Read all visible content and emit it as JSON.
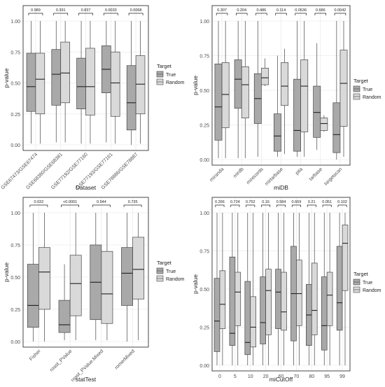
{
  "chart_data": [
    {
      "type": "boxplot",
      "xlabel": "Dataset",
      "ylabel": "p-value",
      "categories": [
        "GSE67473/GSE67474",
        "GSE68380/GSE68381",
        "GSE77192/GSE77160",
        "GSE77193/GSE77161",
        "GSE78886/GSE78887"
      ],
      "pvalues": [
        "0.989",
        "0.391",
        "0.837",
        "0.0033",
        "0.0068"
      ],
      "ylim": [
        0,
        1
      ],
      "yticks": [
        "0.00",
        "0.25",
        "0.50",
        "0.75",
        "1.00"
      ],
      "legend_title": "Target",
      "legend_labels": [
        "True",
        "Random"
      ],
      "legend_position": "right",
      "grid": true,
      "series": [
        {
          "name": "True",
          "boxes": [
            [
              0.01,
              0.27,
              0.47,
              0.74,
              1.0
            ],
            [
              0.02,
              0.32,
              0.57,
              0.77,
              1.0
            ],
            [
              0.01,
              0.29,
              0.47,
              0.7,
              1.0
            ],
            [
              0.02,
              0.42,
              0.61,
              0.8,
              1.0
            ],
            [
              0.0,
              0.12,
              0.34,
              0.64,
              1.0
            ]
          ]
        },
        {
          "name": "Random",
          "boxes": [
            [
              0.01,
              0.25,
              0.53,
              0.74,
              1.0
            ],
            [
              0.02,
              0.34,
              0.58,
              0.83,
              1.0
            ],
            [
              0.01,
              0.24,
              0.47,
              0.78,
              1.0
            ],
            [
              0.01,
              0.23,
              0.5,
              0.75,
              1.0
            ],
            [
              0.01,
              0.25,
              0.49,
              0.72,
              1.0
            ]
          ]
        }
      ]
    },
    {
      "type": "boxplot",
      "xlabel": "miDB",
      "ylabel": "p-value",
      "categories": [
        "miranda",
        "mirdb",
        "mirecords",
        "mirtarbase",
        "pita",
        "tarbase",
        "targetscan"
      ],
      "pvalues": [
        "0.307",
        "0.204",
        "0.486",
        "0.114",
        "0.0536",
        "0.686",
        "0.0042"
      ],
      "ylim": [
        0,
        1
      ],
      "yticks": [
        "0.00",
        "0.25",
        "0.50",
        "0.75",
        "1.00"
      ],
      "legend_title": "Target",
      "legend_labels": [
        "True",
        "Random"
      ],
      "legend_position": "right",
      "grid": true,
      "series": [
        {
          "name": "True",
          "boxes": [
            [
              0.01,
              0.14,
              0.38,
              0.69,
              1.0
            ],
            [
              0.01,
              0.37,
              0.58,
              0.72,
              1.0
            ],
            [
              0.02,
              0.26,
              0.44,
              0.62,
              1.0
            ],
            [
              0.02,
              0.06,
              0.17,
              0.33,
              0.75
            ],
            [
              0.02,
              0.06,
              0.21,
              0.58,
              1.0
            ],
            [
              0.07,
              0.16,
              0.34,
              0.53,
              0.84
            ],
            [
              0.0,
              0.05,
              0.18,
              0.41,
              1.0
            ]
          ]
        },
        {
          "name": "Random",
          "boxes": [
            [
              0.01,
              0.23,
              0.47,
              0.7,
              1.0
            ],
            [
              0.01,
              0.3,
              0.54,
              0.67,
              1.0
            ],
            [
              0.53,
              0.54,
              0.59,
              0.66,
              0.73
            ],
            [
              0.04,
              0.39,
              0.53,
              0.7,
              0.8
            ],
            [
              0.02,
              0.2,
              0.53,
              0.72,
              1.0
            ],
            [
              0.2,
              0.21,
              0.26,
              0.3,
              0.32
            ],
            [
              0.02,
              0.24,
              0.55,
              0.79,
              1.0
            ]
          ]
        }
      ]
    },
    {
      "type": "boxplot",
      "xlabel": "statTest",
      "ylabel": "p-value",
      "categories": [
        "Fisher",
        "roast_PValue",
        "roast_PValue.Mixed",
        "romerMixed"
      ],
      "pvalues": [
        "0.032",
        "<0.0001",
        "0.544",
        "0.735"
      ],
      "ylim": [
        0,
        1
      ],
      "yticks": [
        "0.00",
        "0.25",
        "0.50",
        "0.75",
        "1.00"
      ],
      "legend_title": "Target",
      "legend_labels": [
        "True",
        "Random"
      ],
      "legend_position": "right",
      "grid": true,
      "series": [
        {
          "name": "True",
          "boxes": [
            [
              0.0,
              0.11,
              0.28,
              0.6,
              1.0
            ],
            [
              0.01,
              0.07,
              0.13,
              0.32,
              0.6
            ],
            [
              0.01,
              0.17,
              0.46,
              0.75,
              1.0
            ],
            [
              0.0,
              0.28,
              0.53,
              0.73,
              1.0
            ]
          ]
        },
        {
          "name": "Random",
          "boxes": [
            [
              0.0,
              0.25,
              0.54,
              0.73,
              1.0
            ],
            [
              0.01,
              0.2,
              0.45,
              0.67,
              1.0
            ],
            [
              0.01,
              0.14,
              0.37,
              0.7,
              1.0
            ],
            [
              0.01,
              0.33,
              0.56,
              0.81,
              1.0
            ]
          ]
        }
      ]
    },
    {
      "type": "boxplot",
      "xlabel": "miCutOff",
      "ylabel": "p-value",
      "categories": [
        "0",
        "5",
        "10",
        "20",
        "60",
        "70",
        "80",
        "95",
        "99"
      ],
      "pvalues": [
        "0.266",
        "0.724",
        "0.752",
        "0.16",
        "0.584",
        "0.669",
        "0.21",
        "0.051",
        "0.102"
      ],
      "ylim": [
        0,
        1
      ],
      "yticks": [
        "0.00",
        "0.25",
        "0.50",
        "0.75",
        "1.00"
      ],
      "legend_title": "Target",
      "legend_labels": [
        "True",
        "Random"
      ],
      "legend_position": "right",
      "grid": true,
      "series": [
        {
          "name": "True",
          "boxes": [
            [
              0.0,
              0.09,
              0.29,
              0.57,
              1.0
            ],
            [
              0.0,
              0.13,
              0.21,
              0.71,
              1.0
            ],
            [
              0.0,
              0.07,
              0.15,
              0.55,
              1.0
            ],
            [
              0.0,
              0.14,
              0.28,
              0.58,
              1.0
            ],
            [
              0.0,
              0.24,
              0.48,
              0.63,
              1.0
            ],
            [
              0.0,
              0.16,
              0.47,
              0.78,
              1.0
            ],
            [
              0.0,
              0.13,
              0.33,
              0.53,
              1.0
            ],
            [
              0.0,
              0.1,
              0.26,
              0.58,
              1.0
            ],
            [
              0.0,
              0.23,
              0.41,
              0.78,
              1.0
            ]
          ]
        },
        {
          "name": "Random",
          "boxes": [
            [
              0.0,
              0.24,
              0.4,
              0.62,
              1.0
            ],
            [
              0.0,
              0.26,
              0.48,
              0.61,
              1.0
            ],
            [
              0.0,
              0.12,
              0.25,
              0.45,
              1.0
            ],
            [
              0.0,
              0.2,
              0.49,
              0.63,
              1.0
            ],
            [
              0.0,
              0.23,
              0.35,
              0.61,
              1.0
            ],
            [
              0.0,
              0.26,
              0.47,
              0.69,
              1.0
            ],
            [
              0.0,
              0.2,
              0.36,
              0.67,
              1.0
            ],
            [
              0.0,
              0.26,
              0.46,
              0.61,
              1.0
            ],
            [
              0.0,
              0.49,
              0.8,
              0.92,
              1.0
            ]
          ]
        }
      ]
    }
  ],
  "colors": {
    "true_fill": "#a9a9a9",
    "random_fill": "#d9d9d9",
    "line": "#444444",
    "grid": "#ebebeb",
    "frame": "#333333",
    "text": "#4d4d4d"
  }
}
